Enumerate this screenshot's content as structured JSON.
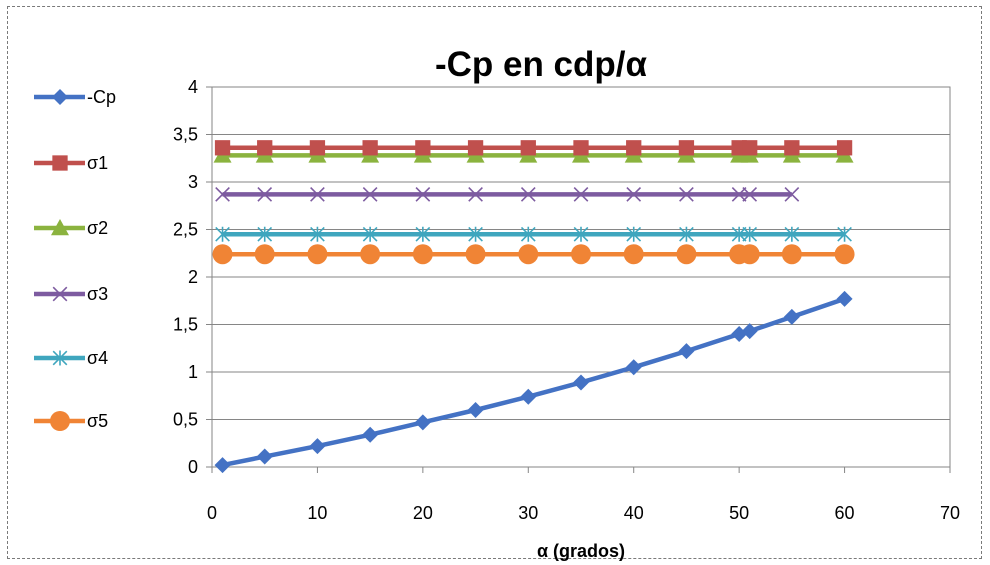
{
  "chart_data": {
    "type": "line",
    "title": "-Cp en cdp/α",
    "xlabel": "α (grados)",
    "ylabel": "",
    "xlim": [
      0,
      70
    ],
    "ylim": [
      0,
      4
    ],
    "xticks": [
      0,
      10,
      20,
      30,
      40,
      50,
      60,
      70
    ],
    "xtick_labels": [
      "0",
      "10",
      "20",
      "30",
      "40",
      "50",
      "60",
      "70"
    ],
    "yticks": [
      0,
      0.5,
      1,
      1.5,
      2,
      2.5,
      3,
      3.5,
      4
    ],
    "ytick_labels": [
      "0",
      "0,5",
      "1",
      "1,5",
      "2",
      "2,5",
      "3",
      "3,5",
      "4"
    ],
    "grid": "horizontal",
    "legend_position": "left",
    "series": [
      {
        "name": "-Cp",
        "color": "#4472C4",
        "marker": "diamond",
        "x": [
          1,
          5,
          10,
          15,
          20,
          25,
          30,
          35,
          40,
          45,
          50,
          51,
          55,
          60
        ],
        "y": [
          0.02,
          0.11,
          0.22,
          0.34,
          0.47,
          0.6,
          0.74,
          0.89,
          1.05,
          1.22,
          1.4,
          1.43,
          1.58,
          1.77
        ]
      },
      {
        "name": "σ1",
        "color": "#C0504D",
        "marker": "square",
        "x": [
          1,
          5,
          10,
          15,
          20,
          25,
          30,
          35,
          40,
          45,
          50,
          51,
          55,
          60
        ],
        "y": [
          3.36,
          3.36,
          3.36,
          3.36,
          3.36,
          3.36,
          3.36,
          3.36,
          3.36,
          3.36,
          3.36,
          3.36,
          3.36,
          3.36
        ]
      },
      {
        "name": "σ2",
        "color": "#8BB33F",
        "marker": "triangle",
        "x": [
          1,
          5,
          10,
          15,
          20,
          25,
          30,
          35,
          40,
          45,
          50,
          51,
          55,
          60
        ],
        "y": [
          3.28,
          3.28,
          3.28,
          3.28,
          3.28,
          3.28,
          3.28,
          3.28,
          3.28,
          3.28,
          3.28,
          3.28,
          3.28,
          3.28
        ]
      },
      {
        "name": "σ3",
        "color": "#7D5BA0",
        "marker": "x",
        "x": [
          1,
          5,
          10,
          15,
          20,
          25,
          30,
          35,
          40,
          45,
          50,
          51,
          55
        ],
        "y": [
          2.87,
          2.87,
          2.87,
          2.87,
          2.87,
          2.87,
          2.87,
          2.87,
          2.87,
          2.87,
          2.87,
          2.87,
          2.87
        ]
      },
      {
        "name": "σ4",
        "color": "#3FA6BE",
        "marker": "star",
        "x": [
          1,
          5,
          10,
          15,
          20,
          25,
          30,
          35,
          40,
          45,
          50,
          51,
          55,
          60
        ],
        "y": [
          2.45,
          2.45,
          2.45,
          2.45,
          2.45,
          2.45,
          2.45,
          2.45,
          2.45,
          2.45,
          2.45,
          2.45,
          2.45,
          2.45
        ]
      },
      {
        "name": "σ5",
        "color": "#F08435",
        "marker": "circle",
        "x": [
          1,
          5,
          10,
          15,
          20,
          25,
          30,
          35,
          40,
          45,
          50,
          51,
          55,
          60
        ],
        "y": [
          2.24,
          2.24,
          2.24,
          2.24,
          2.24,
          2.24,
          2.24,
          2.24,
          2.24,
          2.24,
          2.24,
          2.24,
          2.24,
          2.24
        ]
      }
    ]
  }
}
